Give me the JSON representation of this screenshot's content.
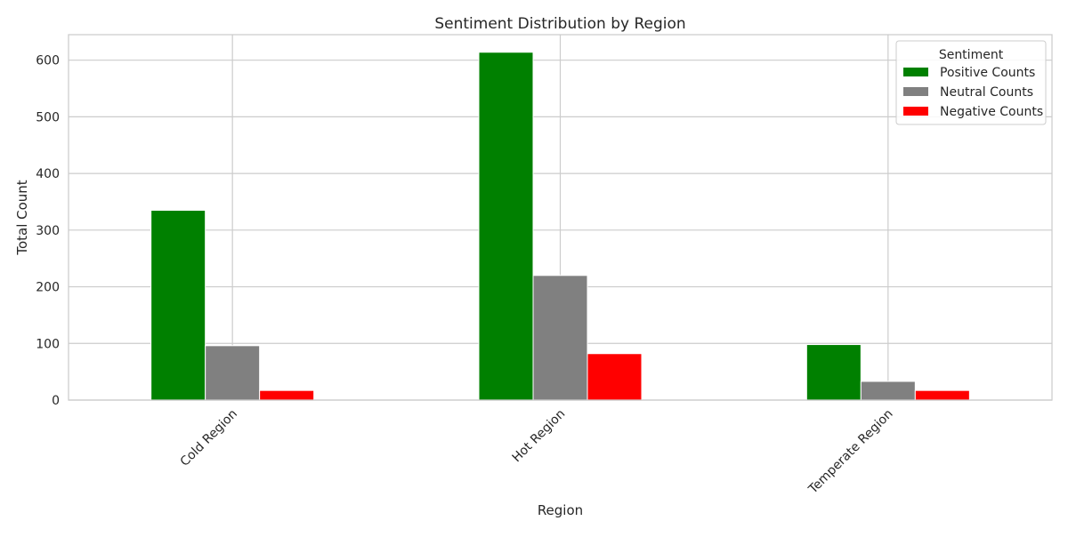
{
  "chart_data": {
    "type": "bar",
    "title": "Sentiment Distribution by Region",
    "xlabel": "Region",
    "ylabel": "Total Count",
    "categories": [
      "Cold Region",
      "Hot Region",
      "Temperate Region"
    ],
    "series": [
      {
        "name": "Positive Counts",
        "color": "#008000",
        "values": [
          335,
          614,
          98
        ]
      },
      {
        "name": "Neutral Counts",
        "color": "#808080",
        "values": [
          96,
          220,
          33
        ]
      },
      {
        "name": "Negative Counts",
        "color": "#ff0000",
        "values": [
          17,
          82,
          17
        ]
      }
    ],
    "ylim": [
      0,
      645
    ],
    "yticks": [
      0,
      100,
      200,
      300,
      400,
      500,
      600
    ],
    "grid": true,
    "legend": {
      "title": "Sentiment",
      "placement": "top-right"
    }
  }
}
